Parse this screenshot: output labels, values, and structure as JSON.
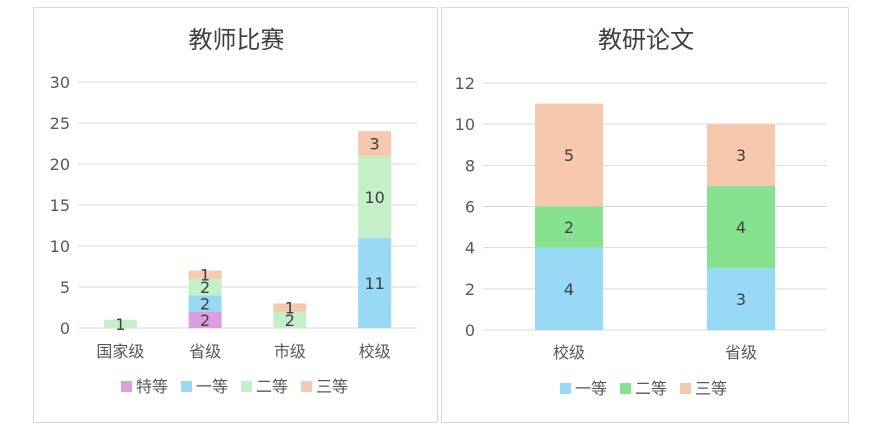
{
  "chart_data": [
    {
      "type": "bar",
      "stacked": true,
      "title": "教师比赛",
      "categories": [
        "国家级",
        "省级",
        "市级",
        "校级"
      ],
      "ylim": [
        0,
        30
      ],
      "yticks": [
        0,
        5,
        10,
        15,
        20,
        25,
        30
      ],
      "grid": true,
      "legend_position": "bottom",
      "series": [
        {
          "name": "特等",
          "color": "#dd9ee0",
          "values": [
            0,
            2,
            0,
            0
          ]
        },
        {
          "name": "一等",
          "color": "#98daf6",
          "values": [
            0,
            2,
            0,
            11
          ]
        },
        {
          "name": "二等",
          "color": "#c3f0c9",
          "values": [
            1,
            2,
            2,
            10
          ]
        },
        {
          "name": "三等",
          "color": "#f6c8ae",
          "values": [
            0,
            1,
            1,
            3
          ]
        }
      ]
    },
    {
      "type": "bar",
      "stacked": true,
      "title": "教研论文",
      "categories": [
        "校级",
        "省级"
      ],
      "ylim": [
        0,
        12
      ],
      "yticks": [
        0,
        2,
        4,
        6,
        8,
        10,
        12
      ],
      "grid": true,
      "legend_position": "bottom",
      "series": [
        {
          "name": "一等",
          "color": "#98daf6",
          "values": [
            4,
            3
          ]
        },
        {
          "name": "二等",
          "color": "#86e28f",
          "values": [
            2,
            4
          ]
        },
        {
          "name": "三等",
          "color": "#f6c8ae",
          "values": [
            5,
            3
          ]
        }
      ]
    }
  ]
}
